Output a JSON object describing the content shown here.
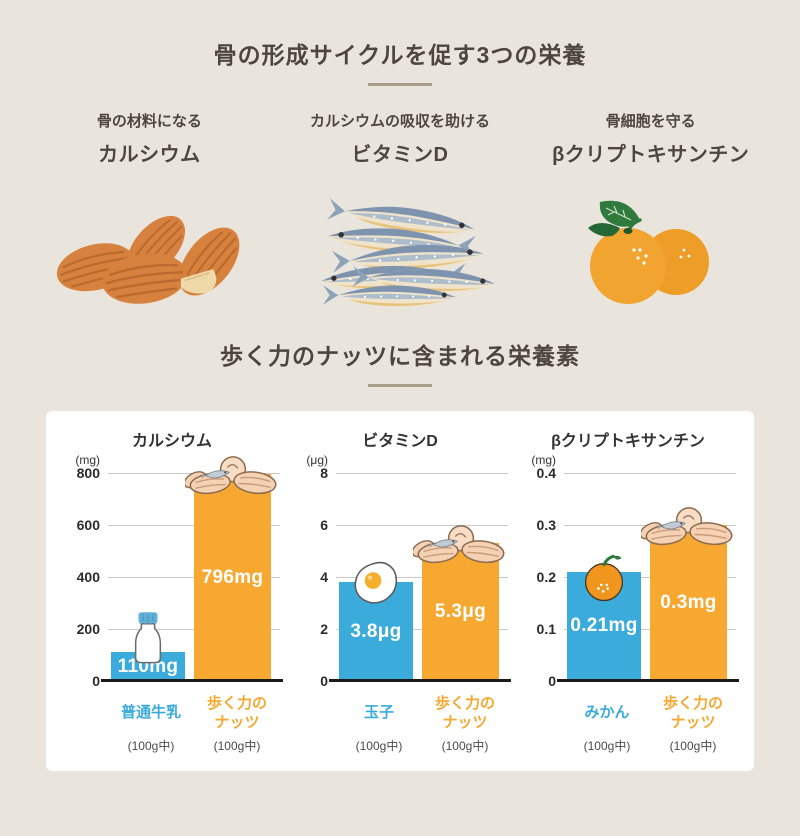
{
  "header": {
    "title": "骨の形成サイクルを促す3つの栄養"
  },
  "nutrients": [
    {
      "role": "骨の材料になる",
      "name": "カルシウム",
      "illustration": "almonds"
    },
    {
      "role": "カルシウムの吸収を助ける",
      "name": "ビタミンD",
      "illustration": "dried-sardines"
    },
    {
      "role": "骨細胞を守る",
      "name": "βクリプトキサンチン",
      "illustration": "mikan-oranges"
    }
  ],
  "section_nutrition": {
    "title": "歩く力のナッツに含まれる栄養素"
  },
  "colors": {
    "background": "#EAE5DC",
    "card": "#FFFFFF",
    "title_text": "#4D4540",
    "underline": "#AC9E88",
    "bar_blue": "#3BABDC",
    "bar_orange": "#F6A831",
    "gridline": "#C9C9C9",
    "baseline": "#1A1A1A"
  },
  "chart_data": [
    {
      "type": "bar",
      "title": "カルシウム",
      "unit_label": "(mg)",
      "ylim": [
        0,
        800
      ],
      "yticks": [
        "800",
        "600",
        "400",
        "200",
        "0"
      ],
      "grid": true,
      "categories": [
        "普通牛乳",
        "歩く力のナッツ"
      ],
      "per_labels": [
        "(100g中)",
        "(100g中)"
      ],
      "values": [
        110,
        796
      ],
      "value_labels": [
        "110mg",
        "796mg"
      ],
      "bar_colors": [
        "#3BABDC",
        "#F6A831"
      ],
      "bar_icons": [
        "milk-bottle-icon",
        "nuts-icon"
      ]
    },
    {
      "type": "bar",
      "title": "ビタミンD",
      "unit_label": "(μg)",
      "ylim": [
        0,
        8
      ],
      "yticks": [
        "8",
        "6",
        "4",
        "2",
        "0"
      ],
      "grid": true,
      "categories": [
        "玉子",
        "歩く力のナッツ"
      ],
      "per_labels": [
        "(100g中)",
        "(100g中)"
      ],
      "values": [
        3.8,
        5.3
      ],
      "value_labels": [
        "3.8μg",
        "5.3μg"
      ],
      "bar_colors": [
        "#3BABDC",
        "#F6A831"
      ],
      "bar_icons": [
        "fried-egg-icon",
        "nuts-icon"
      ]
    },
    {
      "type": "bar",
      "title": "βクリプトキサンチン",
      "unit_label": "(mg)",
      "ylim": [
        0,
        0.4
      ],
      "yticks": [
        "0.4",
        "0.3",
        "0.2",
        "0.1",
        "0"
      ],
      "grid": true,
      "categories": [
        "みかん",
        "歩く力のナッツ"
      ],
      "per_labels": [
        "(100g中)",
        "(100g中)"
      ],
      "values": [
        0.21,
        0.3
      ],
      "value_labels": [
        "0.21mg",
        "0.3mg"
      ],
      "bar_colors": [
        "#3BABDC",
        "#F6A831"
      ],
      "bar_icons": [
        "mikan-icon",
        "nuts-icon"
      ]
    }
  ]
}
